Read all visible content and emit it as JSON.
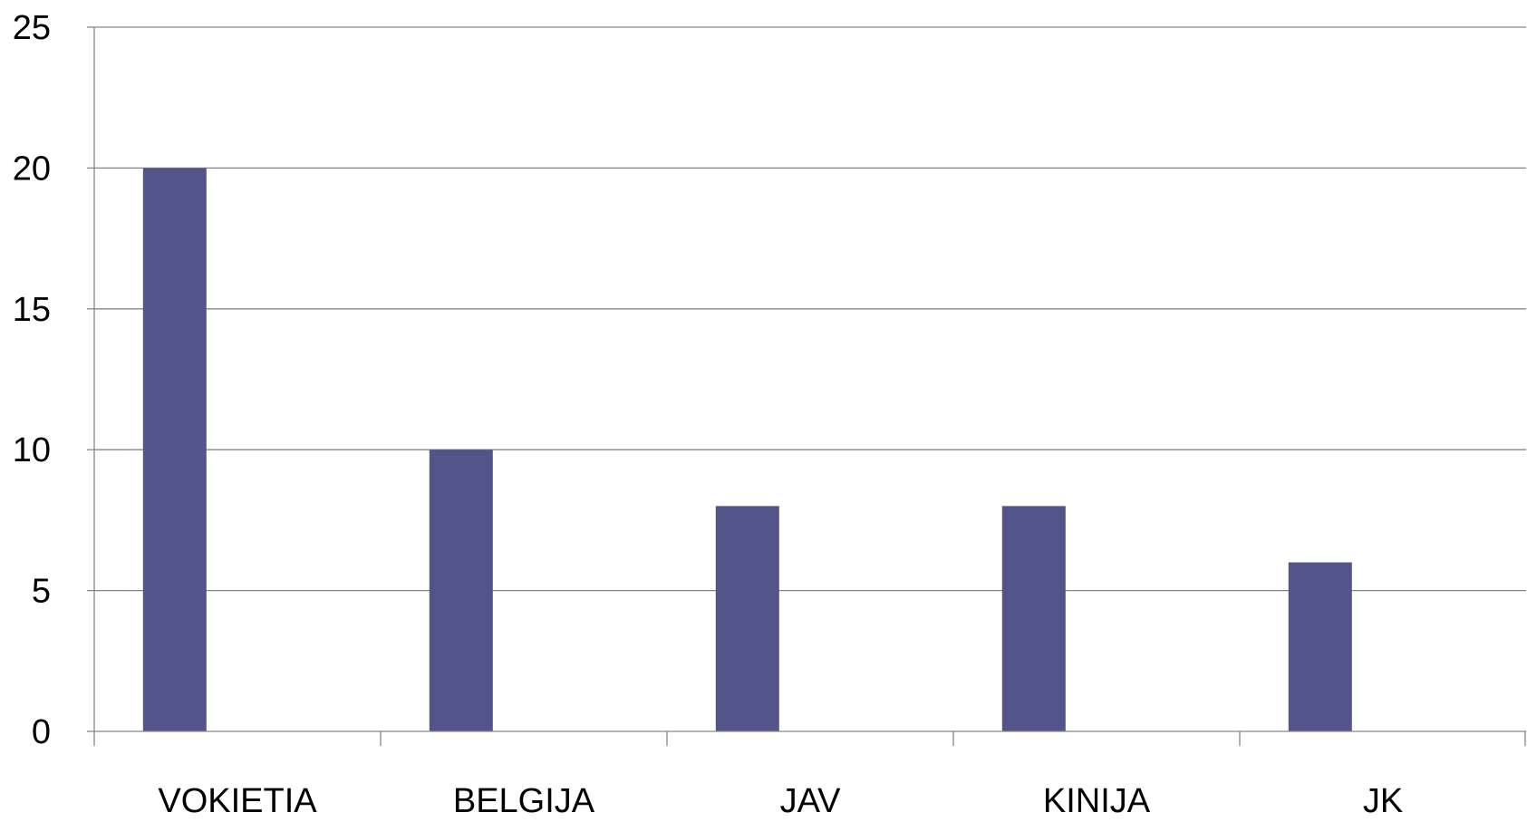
{
  "chart_data": {
    "type": "bar",
    "title": "",
    "xlabel": "",
    "ylabel": "",
    "categories": [
      "VOKIETIA",
      "BELGIJA",
      "JAV",
      "KINIJA",
      "JK"
    ],
    "values": [
      20,
      10,
      8,
      8,
      6
    ],
    "ylim": [
      0,
      25
    ],
    "yticks": [
      0,
      5,
      10,
      15,
      20,
      25
    ],
    "grid": true,
    "legend": "none",
    "bar_color": "#52548A",
    "grid_color": "#868686"
  }
}
